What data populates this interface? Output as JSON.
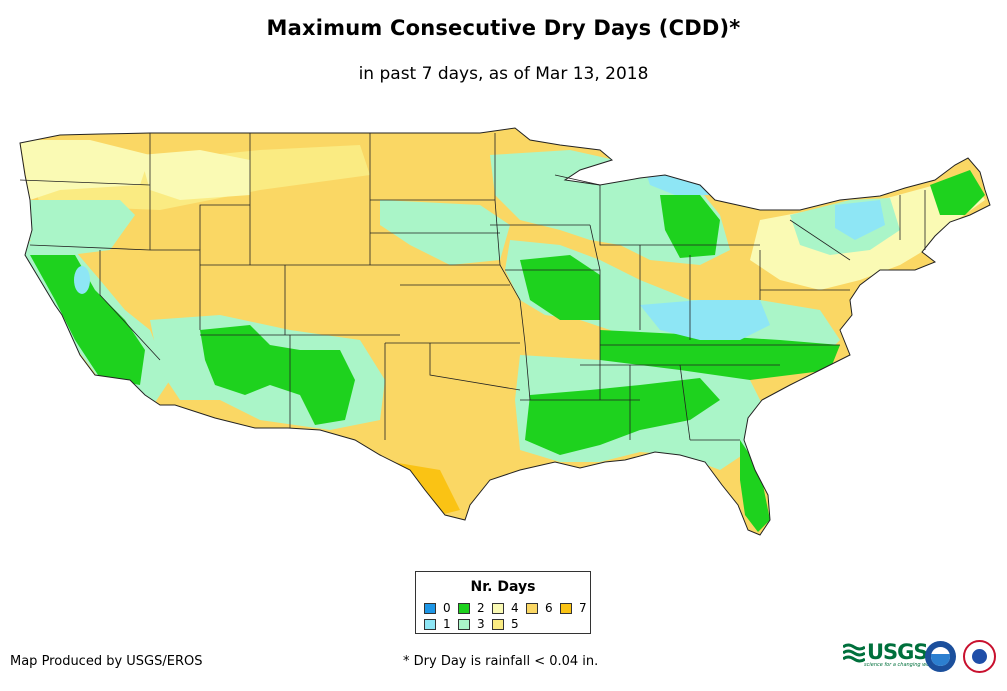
{
  "header": {
    "title": "Maximum Consecutive Dry Days (CDD)*",
    "subtitle": "in past 7 days, as of Mar 13, 2018"
  },
  "legend": {
    "title": "Nr. Days",
    "items": [
      {
        "label": "0",
        "color": "#1e96e6"
      },
      {
        "label": "1",
        "color": "#8ee6f5"
      },
      {
        "label": "2",
        "color": "#1ed21e"
      },
      {
        "label": "3",
        "color": "#aaf5c8"
      },
      {
        "label": "4",
        "color": "#fafab4"
      },
      {
        "label": "5",
        "color": "#faeb82"
      },
      {
        "label": "6",
        "color": "#fad764"
      },
      {
        "label": "7",
        "color": "#fac314"
      }
    ]
  },
  "footer": {
    "credit": "Map Produced by USGS/EROS",
    "note": "* Dry Day is rainfall < 0.04 in."
  },
  "logos": {
    "usgs_text": "USGS",
    "usgs_tagline": "science for a changing world",
    "noaa_text": "noaa"
  }
}
